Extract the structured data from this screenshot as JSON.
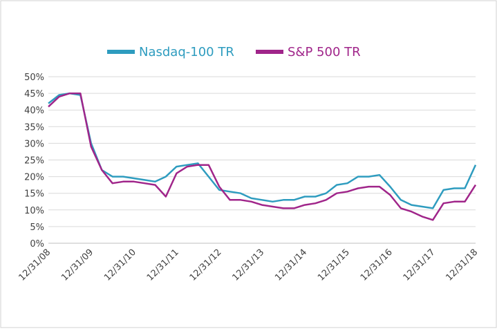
{
  "chart_data": {
    "type": "line",
    "categories": [
      "12/31/08",
      null,
      null,
      null,
      "12/31/09",
      null,
      null,
      null,
      "12/31/10",
      null,
      null,
      null,
      "12/31/11",
      null,
      null,
      null,
      "12/31/12",
      null,
      null,
      null,
      "12/31/13",
      null,
      null,
      null,
      "12/31/14",
      null,
      null,
      null,
      "12/31/15",
      null,
      null,
      null,
      "12/31/16",
      null,
      null,
      null,
      "12/31/17",
      null,
      null,
      null,
      "12/31/18"
    ],
    "series": [
      {
        "name": "Nasdaq-100 TR",
        "color": "#2e9cbf",
        "values": [
          42,
          44.5,
          45,
          44.5,
          30,
          22,
          20,
          20,
          19.5,
          19,
          18.5,
          20,
          23,
          23.5,
          24,
          20,
          16,
          15.5,
          15,
          13.5,
          13,
          12.5,
          13,
          13,
          14,
          14,
          15,
          17.5,
          18,
          20,
          20,
          20.5,
          17,
          13,
          11.5,
          11,
          10.5,
          16,
          16.5,
          16.5,
          23.5
        ]
      },
      {
        "name": "S&P 500 TR",
        "color": "#a0258a",
        "values": [
          41,
          44,
          45,
          45,
          29,
          22,
          18,
          18.5,
          18.5,
          18,
          17.5,
          14,
          21,
          23,
          23.5,
          23.5,
          17,
          13,
          13,
          12.5,
          11.5,
          11,
          10.5,
          10.5,
          11.5,
          12,
          13,
          15,
          15.5,
          16.5,
          17,
          17,
          14.5,
          10.5,
          9.5,
          8,
          7,
          12,
          12.5,
          12.5,
          17.5
        ]
      }
    ],
    "ylim": [
      0,
      50
    ],
    "yticks": [
      {
        "value": 0,
        "label": "0%"
      },
      {
        "value": 5,
        "label": "5%"
      },
      {
        "value": 10,
        "label": "10%"
      },
      {
        "value": 15,
        "label": "15%"
      },
      {
        "value": 20,
        "label": "20%"
      },
      {
        "value": 25,
        "label": "25%"
      },
      {
        "value": 30,
        "label": "30%"
      },
      {
        "value": 35,
        "label": "35%"
      },
      {
        "value": 40,
        "label": "40%"
      },
      {
        "value": 45,
        "label": "45%"
      },
      {
        "value": 50,
        "label": "50%"
      }
    ],
    "grid": true,
    "legend": "top"
  }
}
